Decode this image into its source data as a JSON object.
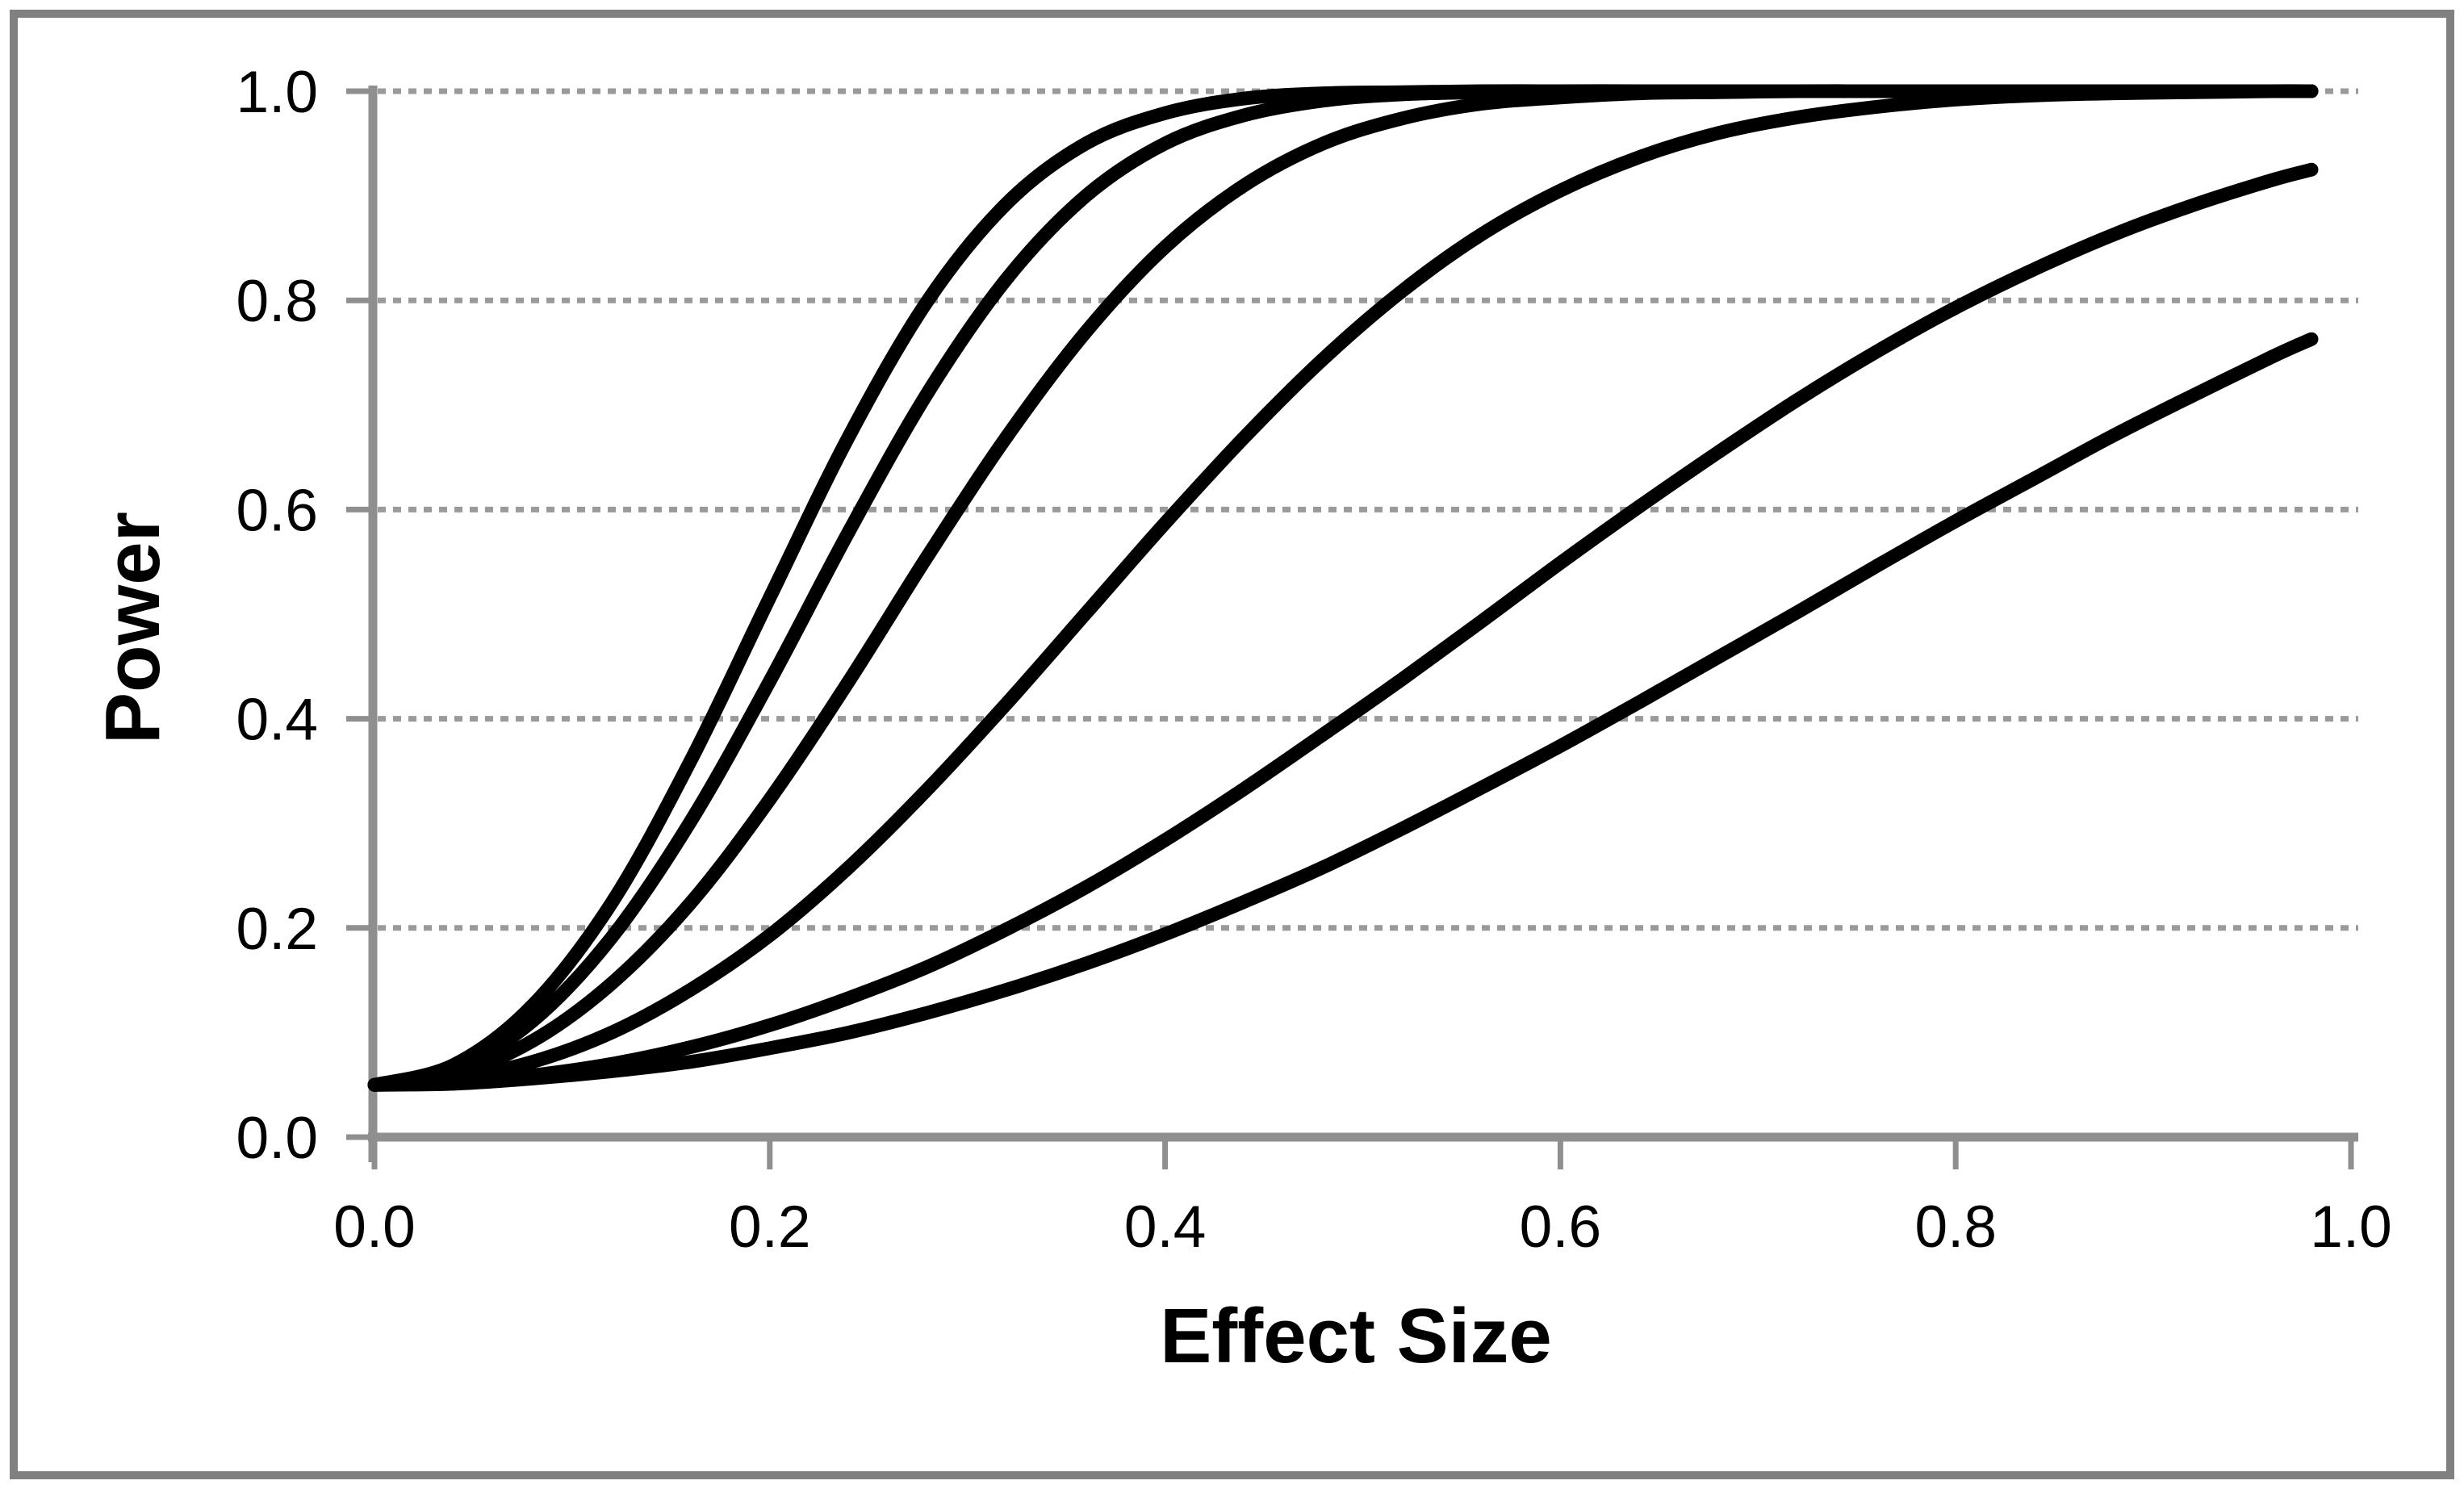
{
  "figure": {
    "background_color": "#FFFFFF",
    "border_color": "#808080",
    "axis_color": "#8F8F8F",
    "gridline_color": "#9A9A9A",
    "curve_color": "#000000",
    "text_color": "#000000"
  },
  "chart_data": {
    "type": "line",
    "title": "",
    "xlabel": "Effect Size",
    "ylabel": "Power",
    "xlim": [
      0.0,
      1.0
    ],
    "ylim": [
      0.0,
      1.0
    ],
    "x_tick_labels": [
      "0.0",
      "0.2",
      "0.4",
      "0.6",
      "0.8",
      "1.0"
    ],
    "y_tick_labels": [
      "0.0",
      "0.2",
      "0.4",
      "0.6",
      "0.8",
      "1.0"
    ],
    "x_tick_values": [
      0.0,
      0.2,
      0.4,
      0.6,
      0.8,
      1.0
    ],
    "y_tick_values": [
      0.0,
      0.2,
      0.4,
      0.6,
      0.8,
      1.0
    ],
    "grid": "horizontal-dotted",
    "legend": "none",
    "x": [
      0.0,
      0.04,
      0.08,
      0.12,
      0.16,
      0.2,
      0.24,
      0.28,
      0.32,
      0.36,
      0.4,
      0.44,
      0.48,
      0.52,
      0.56,
      0.6,
      0.64,
      0.68,
      0.72,
      0.76,
      0.8,
      0.84,
      0.88,
      0.92,
      0.96,
      0.98
    ],
    "series": [
      {
        "values": [
          0.05,
          0.069,
          0.126,
          0.224,
          0.36,
          0.516,
          0.67,
          0.8,
          0.893,
          0.95,
          0.979,
          0.993,
          0.998,
          0.999,
          1.0,
          1.0,
          1.0,
          1.0,
          1.0,
          1.0,
          1.0,
          1.0,
          1.0,
          1.0,
          1.0,
          1.0
        ]
      },
      {
        "values": [
          0.05,
          0.065,
          0.111,
          0.191,
          0.302,
          0.436,
          0.579,
          0.712,
          0.821,
          0.9,
          0.95,
          0.977,
          0.991,
          0.997,
          0.999,
          1.0,
          1.0,
          1.0,
          1.0,
          1.0,
          1.0,
          1.0,
          1.0,
          1.0,
          1.0,
          1.0
        ]
      },
      {
        "values": [
          0.05,
          0.06,
          0.092,
          0.147,
          0.224,
          0.323,
          0.436,
          0.556,
          0.67,
          0.77,
          0.851,
          0.91,
          0.95,
          0.974,
          0.988,
          0.994,
          0.998,
          0.999,
          1.0,
          1.0,
          1.0,
          1.0,
          1.0,
          1.0,
          1.0,
          1.0
        ]
      },
      {
        "values": [
          0.05,
          0.056,
          0.072,
          0.1,
          0.141,
          0.193,
          0.258,
          0.333,
          0.415,
          0.501,
          0.587,
          0.669,
          0.744,
          0.809,
          0.863,
          0.905,
          0.937,
          0.96,
          0.975,
          0.985,
          0.992,
          0.996,
          0.998,
          0.999,
          1.0,
          1.0
        ]
      },
      {
        "values": [
          0.05,
          0.052,
          0.059,
          0.07,
          0.086,
          0.107,
          0.133,
          0.163,
          0.199,
          0.239,
          0.284,
          0.333,
          0.385,
          0.438,
          0.493,
          0.549,
          0.603,
          0.655,
          0.705,
          0.751,
          0.793,
          0.83,
          0.863,
          0.891,
          0.915,
          0.925
        ]
      },
      {
        "values": [
          0.05,
          0.051,
          0.056,
          0.063,
          0.072,
          0.085,
          0.1,
          0.119,
          0.141,
          0.166,
          0.194,
          0.225,
          0.258,
          0.295,
          0.334,
          0.374,
          0.416,
          0.459,
          0.502,
          0.546,
          0.589,
          0.63,
          0.671,
          0.709,
          0.746,
          0.763
        ]
      }
    ]
  }
}
